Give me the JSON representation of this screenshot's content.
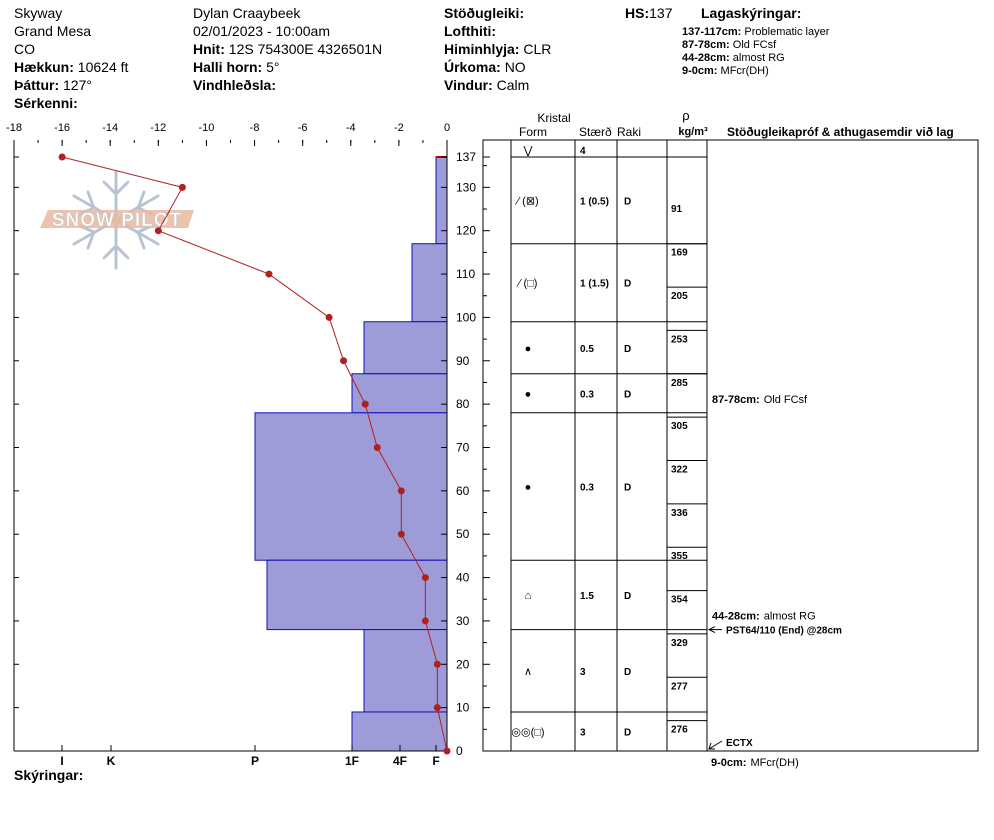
{
  "header": {
    "site": "Skyway",
    "area": "Grand Mesa",
    "state": "CO",
    "elevation_label": "Hækkun:",
    "elevation_value": "10624 ft",
    "aspect_label": "Þáttur:",
    "aspect_value": "127°",
    "features_label": "Sérkenni:",
    "observer": "Dylan Craaybeek",
    "datetime": "02/01/2023 - 10:00am",
    "coords_label": "Hnit:",
    "coords_value": "12S 754300E 4326501N",
    "slope_label": "Halli horn:",
    "slope_value": "5°",
    "wind_loading_label": "Vindhleðsla:",
    "stability_label": "Stöðugleiki:",
    "air_temp_label": "Lofthiti:",
    "sky_label": "Himinhlyja:",
    "sky_value": "CLR",
    "precip_label": "Úrkoma:",
    "precip_value": "NO",
    "wind_label": "Vindur:",
    "wind_value": "Calm",
    "hs_label": "HS:",
    "hs_value": "137",
    "layer_notes_title": "Lagaskýringar:",
    "layer_notes": [
      {
        "range": "137-117cm:",
        "text": "Problematic layer"
      },
      {
        "range": "87-78cm:",
        "text": "Old FCsf"
      },
      {
        "range": "44-28cm:",
        "text": "almost RG"
      },
      {
        "range": "9-0cm:",
        "text": "MFcr(DH)"
      }
    ],
    "remarks_label": "Skýringar:"
  },
  "watermark": "SNOW PILOT",
  "table_headers": {
    "crystal": "Kristal",
    "form": "Form",
    "size": "Stærð",
    "moisture": "Raki",
    "rho": "ρ",
    "density_unit": "kg/m³",
    "tests": "Stöðugleikapróf & athugasemdir við lag"
  },
  "chart_data": {
    "type": "line",
    "temperature_axis": {
      "ticks": [
        -18,
        -16,
        -14,
        -12,
        -10,
        -8,
        -6,
        -4,
        -2,
        0
      ],
      "range": [
        -18,
        0
      ]
    },
    "height_axis": {
      "ticks": [
        0,
        10,
        20,
        30,
        40,
        50,
        60,
        70,
        80,
        90,
        100,
        110,
        120,
        130,
        137
      ],
      "range": [
        0,
        137
      ]
    },
    "hardness_axis": {
      "labels": [
        "I",
        "K",
        "P",
        "1F",
        "4F",
        "F"
      ]
    },
    "temperature_profile": [
      {
        "height": 137,
        "temp": -16
      },
      {
        "height": 130,
        "temp": -11
      },
      {
        "height": 120,
        "temp": -12
      },
      {
        "height": 110,
        "temp": -7.4
      },
      {
        "height": 100,
        "temp": -4.9
      },
      {
        "height": 90,
        "temp": -4.3
      },
      {
        "height": 80,
        "temp": -3.4
      },
      {
        "height": 70,
        "temp": -2.9
      },
      {
        "height": 60,
        "temp": -1.9
      },
      {
        "height": 50,
        "temp": -1.9
      },
      {
        "height": 40,
        "temp": -0.9
      },
      {
        "height": 30,
        "temp": -0.9
      },
      {
        "height": 20,
        "temp": -0.4
      },
      {
        "height": 10,
        "temp": -0.4
      },
      {
        "height": 0,
        "temp": 0
      }
    ],
    "hardness_layers": [
      {
        "top": 137,
        "bottom": 117,
        "hardness": "F"
      },
      {
        "top": 117,
        "bottom": 99,
        "hardness": "4F-"
      },
      {
        "top": 99,
        "bottom": 87,
        "hardness": "1F-"
      },
      {
        "top": 87,
        "bottom": 78,
        "hardness": "1F"
      },
      {
        "top": 78,
        "bottom": 44,
        "hardness": "P"
      },
      {
        "top": 44,
        "bottom": 28,
        "hardness": "P-"
      },
      {
        "top": 28,
        "bottom": 9,
        "hardness": "1F-"
      },
      {
        "top": 9,
        "bottom": 0,
        "hardness": "1F"
      }
    ]
  },
  "layers": [
    {
      "top": 137,
      "bottom": 137,
      "form": "⋁",
      "size": "4",
      "moisture": ""
    },
    {
      "top": 137,
      "bottom": 117,
      "form": "⁄ (⊠)",
      "size": "1 (0.5)",
      "moisture": "D"
    },
    {
      "top": 117,
      "bottom": 99,
      "form": "⁄ (□)",
      "size": "1 (1.5)",
      "moisture": "D"
    },
    {
      "top": 99,
      "bottom": 87,
      "form": "●",
      "size": "0.5",
      "moisture": "D"
    },
    {
      "top": 87,
      "bottom": 78,
      "form": "●",
      "size": "0.3",
      "moisture": "D"
    },
    {
      "top": 78,
      "bottom": 44,
      "form": "●",
      "size": "0.3",
      "moisture": "D"
    },
    {
      "top": 44,
      "bottom": 28,
      "form": "⌂",
      "size": "1.5",
      "moisture": "D"
    },
    {
      "top": 28,
      "bottom": 9,
      "form": "∧",
      "size": "3",
      "moisture": "D"
    },
    {
      "top": 9,
      "bottom": 0,
      "form": "◎◎(□)",
      "size": "3",
      "moisture": "D"
    }
  ],
  "densities": [
    {
      "top": 137,
      "bottom": 117,
      "value": "91"
    },
    {
      "top": 117,
      "bottom": 107,
      "value": "169"
    },
    {
      "top": 107,
      "bottom": 97,
      "value": "205"
    },
    {
      "top": 97,
      "bottom": 87,
      "value": "253"
    },
    {
      "top": 87,
      "bottom": 77,
      "value": "285"
    },
    {
      "top": 77,
      "bottom": 67,
      "value": "305"
    },
    {
      "top": 67,
      "bottom": 57,
      "value": "322"
    },
    {
      "top": 57,
      "bottom": 47,
      "value": "336"
    },
    {
      "top": 47,
      "bottom": 37,
      "value": "355"
    },
    {
      "top": 37,
      "bottom": 27,
      "value": "354"
    },
    {
      "top": 27,
      "bottom": 17,
      "value": "329"
    },
    {
      "top": 17,
      "bottom": 7,
      "value": "277"
    },
    {
      "top": 7,
      "bottom": 0,
      "value": "276"
    }
  ],
  "comments": [
    {
      "height": 78,
      "bold": "87-78cm:",
      "text": "Old FCsf"
    },
    {
      "height": 28,
      "bold": "44-28cm:",
      "text": "almost RG"
    }
  ],
  "tests": [
    {
      "height": 28,
      "text": "PST64/110 (End) @28cm"
    },
    {
      "height": 0,
      "text": "ECTX"
    }
  ],
  "footer_note": {
    "bold": "9-0cm:",
    "text": "MFcr(DH)"
  },
  "colors": {
    "hardness_fill": "#9e9cd8",
    "hardness_stroke": "#1010b0",
    "temp_line": "#b02020"
  }
}
